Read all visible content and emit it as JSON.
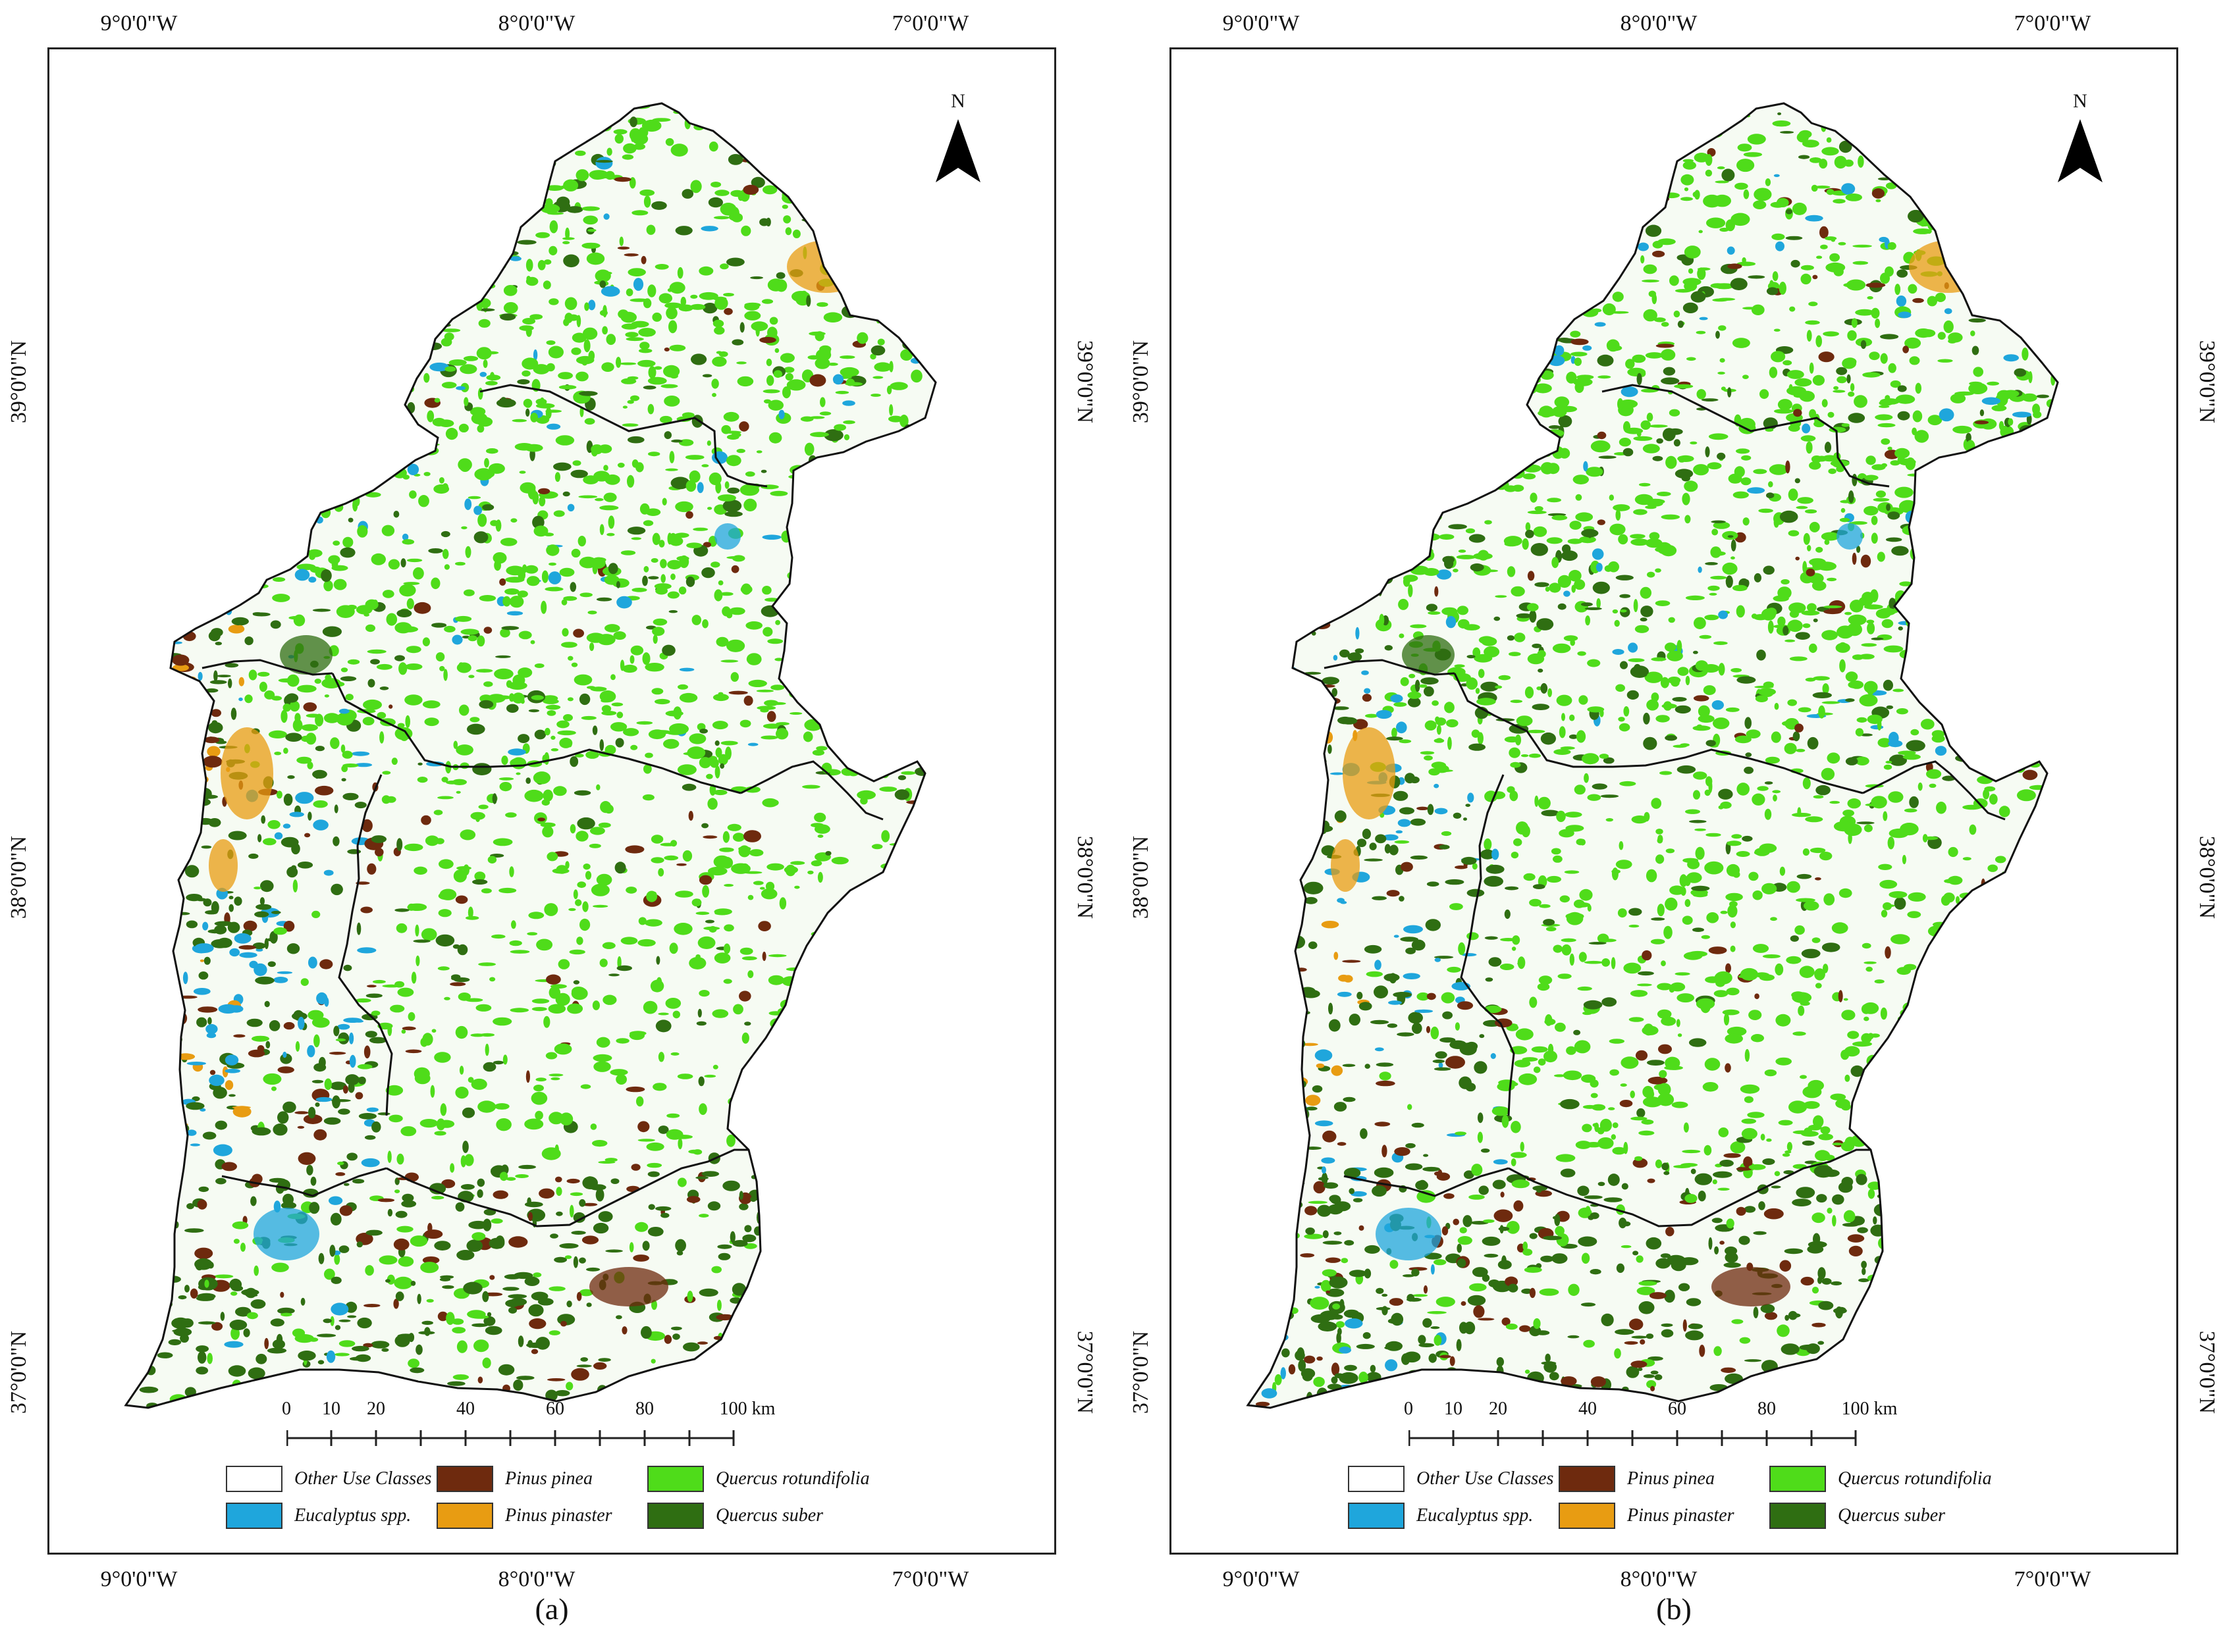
{
  "panels": [
    {
      "caption": "(a)",
      "ticks": {
        "lon": [
          "9°0'0\"W",
          "8°0'0\"W",
          "7°0'0\"W"
        ],
        "lat": [
          "39°0'0\"N",
          "38°0'0\"N",
          "37°0'0\"N"
        ]
      },
      "north_label": "N",
      "scale": {
        "labels": [
          "0",
          "10",
          "20",
          "40",
          "60",
          "80",
          "100 km"
        ]
      },
      "legend": [
        {
          "label": "Other Use Classes",
          "color": "#ffffff"
        },
        {
          "label": "Eucalyptus spp.",
          "color": "#1fa6dc"
        },
        {
          "label": "Pinus pinea",
          "color": "#6e2a0e"
        },
        {
          "label": "Pinus pinaster",
          "color": "#e89c12"
        },
        {
          "label": "Quercus rotundifolia",
          "color": "#4fdc1a"
        },
        {
          "label": "Quercus suber",
          "color": "#2f6e12"
        }
      ]
    },
    {
      "caption": "(b)",
      "ticks": {
        "lon": [
          "9°0'0\"W",
          "8°0'0\"W",
          "7°0'0\"W"
        ],
        "lat": [
          "39°0'0\"N",
          "38°0'0\"N",
          "37°0'0\"N"
        ]
      },
      "north_label": "N",
      "scale": {
        "labels": [
          "0",
          "10",
          "20",
          "40",
          "60",
          "80",
          "100 km"
        ]
      },
      "legend": [
        {
          "label": "Other Use Classes",
          "color": "#ffffff"
        },
        {
          "label": "Eucalyptus spp.",
          "color": "#1fa6dc"
        },
        {
          "label": "Pinus pinea",
          "color": "#6e2a0e"
        },
        {
          "label": "Pinus pinaster",
          "color": "#e89c12"
        },
        {
          "label": "Quercus rotundifolia",
          "color": "#4fdc1a"
        },
        {
          "label": "Quercus suber",
          "color": "#2f6e12"
        }
      ]
    }
  ]
}
